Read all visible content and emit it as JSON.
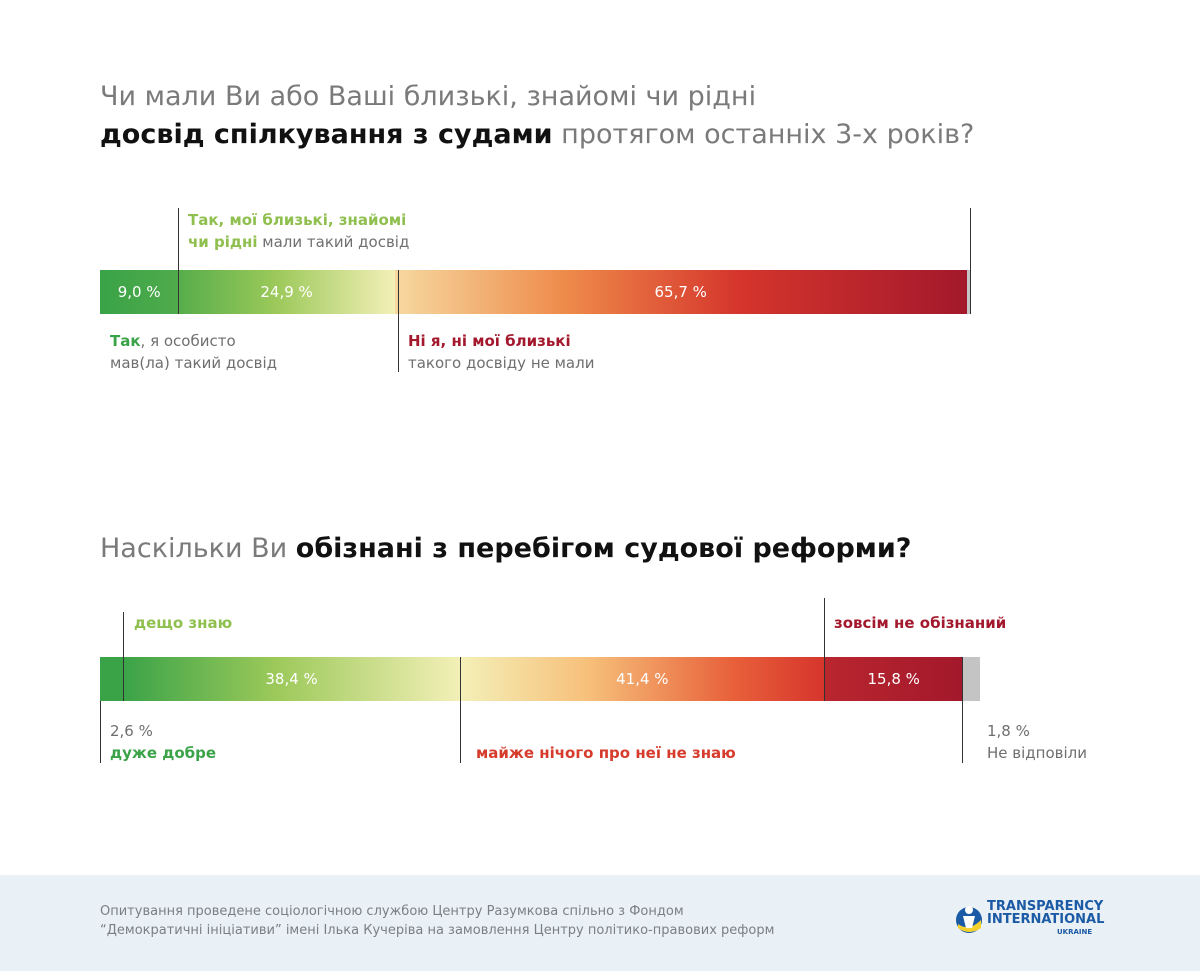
{
  "q1": {
    "title_pre": "Чи мали Ви або Ваші близькі, знайомі чи рідні",
    "title_bold": "досвід спілкування з судами",
    "title_post": " протягом останніх 3-х років?",
    "label_relatives_bold1": "Так, мої близькі, знайомі",
    "label_relatives_bold2": "чи рідні",
    "label_relatives_rest": " мали такий досвід",
    "label_self_bold": "Так",
    "label_self_rest1": ", я особисто",
    "label_self_rest2": "мав(ла) такий досвід",
    "label_no_bold": "Ні я, ні мої близькі",
    "label_no_rest": "такого досвіду не мали"
  },
  "q2": {
    "title_pre": "Наскільки Ви ",
    "title_bold": "обізнані з перебігом судової реформи?",
    "label_somewhat": "дещо знаю",
    "label_not_at_all": "зовсім не обізнаний",
    "label_very_well_value": "2,6 %",
    "label_very_well": "дуже добре",
    "label_almost_nothing": "майже нічого про неї не знаю",
    "label_no_answer_value": "1,8 %",
    "label_no_answer": "Не відповіли"
  },
  "footer": {
    "line1": "Опитування проведене соціологічною службою Центру Разумкова спільно з Фондом",
    "line2": "“Демократичні ініціативи” імені Ілька Кучеріва на замовлення Центру політико-правових реформ",
    "logo_line1": "TRANSPARENCY",
    "logo_line2": "INTERNATIONAL",
    "logo_line3": "UKRAINE"
  },
  "chart_data": [
    {
      "type": "bar",
      "orientation": "stacked-horizontal",
      "categories": [
        "Так, я особисто мав(ла) такий досвід",
        "Так, мої близькі, знайомі чи рідні мали такий досвід",
        "Ні я, ні мої близькі такого досвіду не мали",
        ""
      ],
      "values": [
        9.0,
        24.9,
        65.7,
        0.4
      ],
      "value_labels": [
        "9,0 %",
        "24,9 %",
        "65,7 %",
        ""
      ],
      "colors": [
        "#3aa348",
        "#f4f0b8",
        "#a3182c",
        "#c4c4c4"
      ]
    },
    {
      "type": "bar",
      "orientation": "stacked-horizontal",
      "categories": [
        "дуже добре",
        "дещо знаю",
        "майже нічого про неї не знаю",
        "зовсім не обізнаний",
        "Не відповіли"
      ],
      "values": [
        2.6,
        38.4,
        41.4,
        15.8,
        1.8
      ],
      "value_labels": [
        "",
        "38,4 %",
        "41,4 %",
        "15,8 %",
        ""
      ],
      "colors": [
        "#3aa348",
        "#f4f0b8",
        "#a3182c",
        "#a3182c",
        "#c4c4c4"
      ]
    }
  ]
}
